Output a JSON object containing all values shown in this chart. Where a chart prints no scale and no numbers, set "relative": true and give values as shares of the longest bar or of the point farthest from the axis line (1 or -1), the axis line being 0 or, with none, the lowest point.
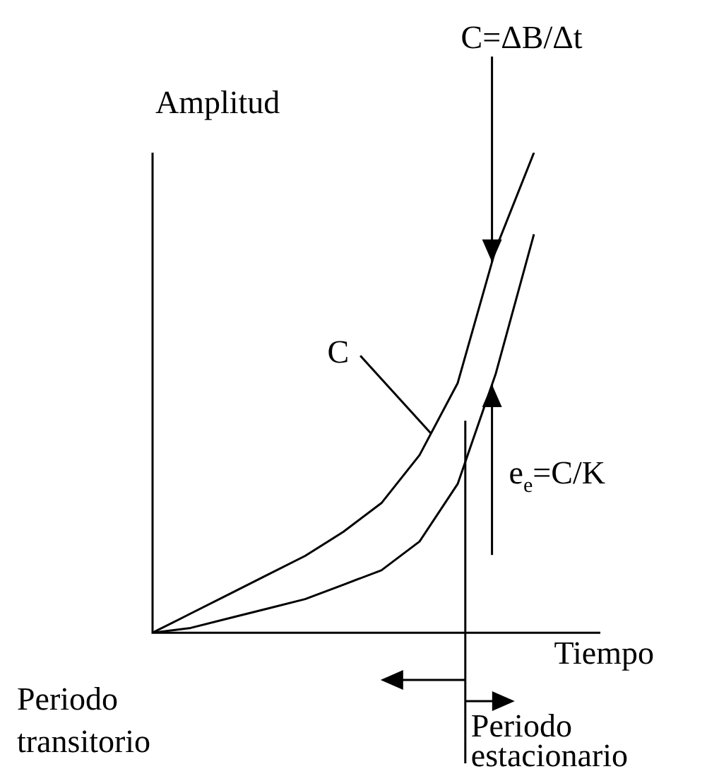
{
  "chart_data": {
    "type": "line",
    "relative": true,
    "xlabel": "Tiempo",
    "ylabel": "Amplitud",
    "marker": "none",
    "line_style": "solid",
    "categories": [
      null,
      null,
      null,
      null,
      null,
      null,
      null,
      null,
      null,
      null,
      null
    ],
    "series": [
      {
        "color": "#000000",
        "values": [
          0,
          0.04,
          0.08,
          0.12,
          0.16,
          0.21,
          0.27,
          0.37,
          0.52,
          0.8,
          1
        ]
      },
      {
        "color": "#000000",
        "values": [
          0,
          0.01,
          0.03,
          0.05,
          0.07,
          0.1,
          0.13,
          0.19,
          0.31,
          0.54,
          0.83
        ]
      }
    ],
    "annotations": [
      "C",
      "C=ΔB/Δt",
      "e$_{e}$=C/K",
      "Periodo\ntransitorio",
      "Periodo\nestacionario"
    ]
  }
}
